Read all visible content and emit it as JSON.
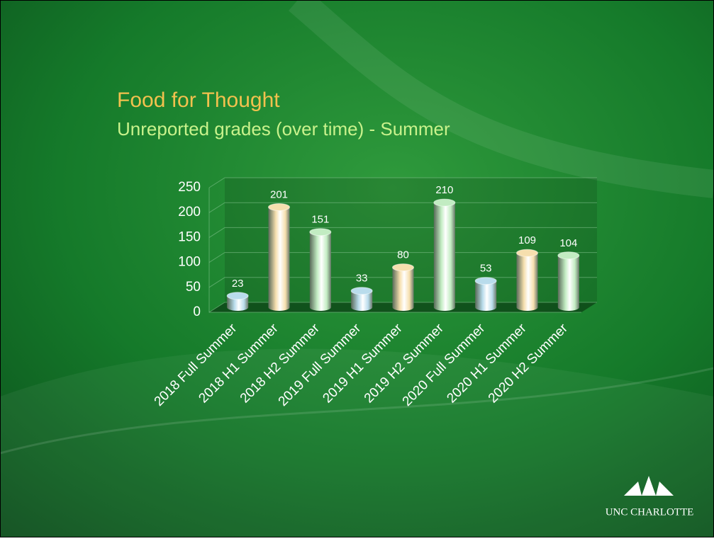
{
  "chart_data": {
    "type": "bar3d",
    "title": "Food for Thought",
    "subtitle": "Unreported grades (over time) - Summer",
    "categories": [
      "2018 Full Summer",
      "2018 H1 Summer",
      "2018 H2 Summer",
      "2019 Full Summer",
      "2019 H1 Summer",
      "2019 H2 Summer",
      "2020 Full Summer",
      "2020 H1 Summer",
      "2020 H2 Summer"
    ],
    "values": [
      23,
      201,
      151,
      33,
      80,
      210,
      53,
      109,
      104
    ],
    "colors": [
      "#b9dcec",
      "#f6dfae",
      "#c2ecc2",
      "#b9dcec",
      "#f6dfae",
      "#c2ecc2",
      "#b9dcec",
      "#f6dfae",
      "#c2ecc2"
    ],
    "ylim": [
      0,
      250
    ],
    "yticks": [
      0,
      50,
      100,
      150,
      200,
      250
    ],
    "grid": true
  },
  "logo": {
    "text": "UNC CHARLOTTE"
  }
}
